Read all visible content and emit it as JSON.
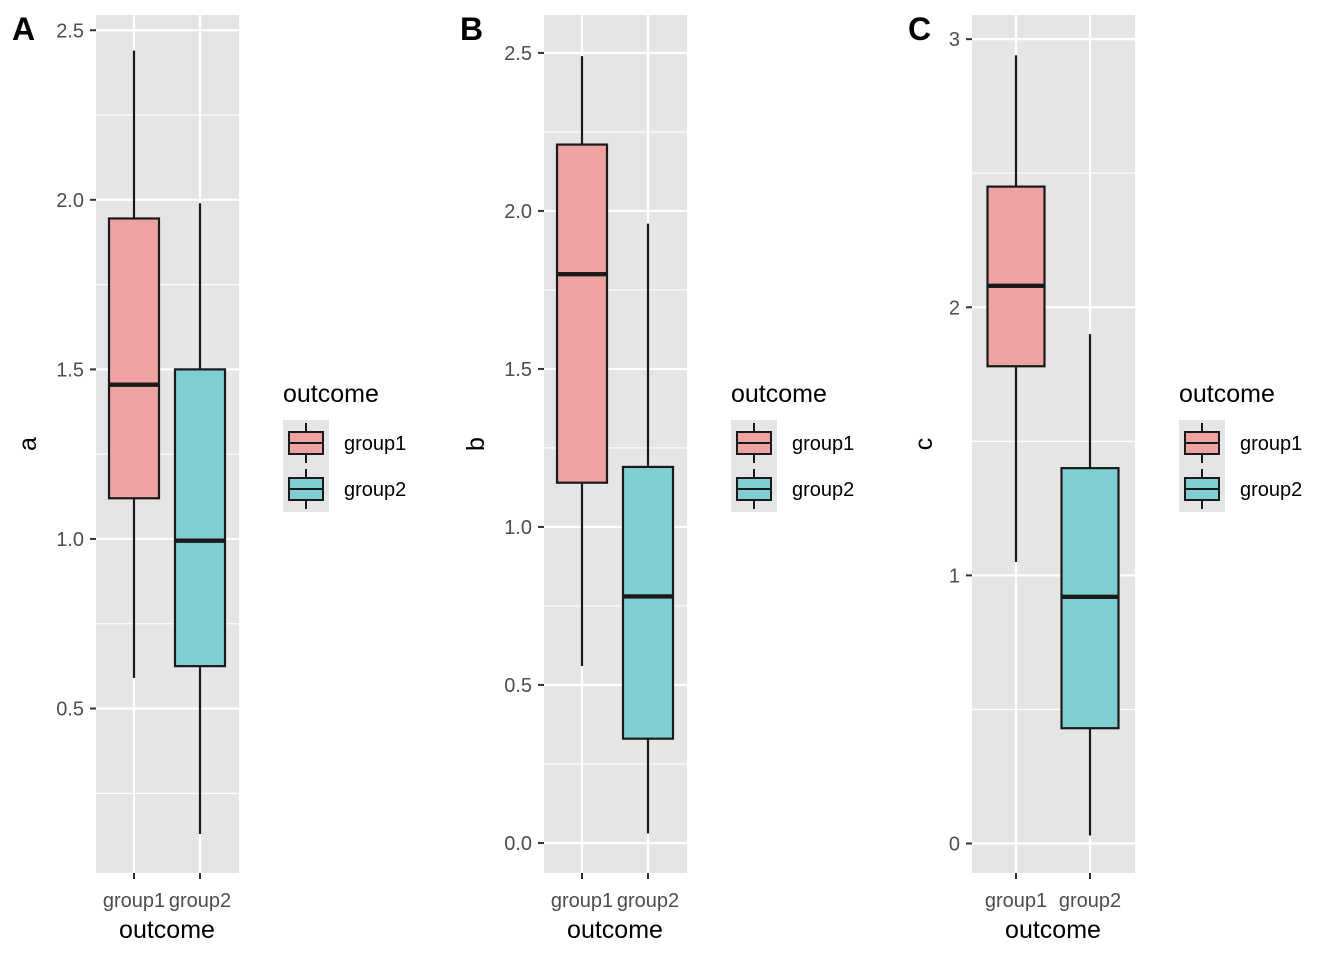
{
  "chart_data": [
    {
      "type": "boxplot",
      "panel_tag": "A",
      "xlabel": "outcome",
      "ylabel": "a",
      "categories": [
        "group1",
        "group2"
      ],
      "ylim": [
        0.015,
        2.545
      ],
      "yticks": [
        0.5,
        1.0,
        1.5,
        2.0,
        2.5
      ],
      "yticks_labels": [
        "0.5",
        "1.0",
        "1.5",
        "2.0",
        "2.5"
      ],
      "boxes": [
        {
          "group": "group1",
          "whisker_low": 0.59,
          "q1": 1.12,
          "median": 1.455,
          "q3": 1.945,
          "whisker_high": 2.44
        },
        {
          "group": "group2",
          "whisker_low": 0.13,
          "q1": 0.625,
          "median": 0.995,
          "q3": 1.5,
          "whisker_high": 1.99
        }
      ],
      "legend": {
        "title": "outcome",
        "entries": [
          "group1",
          "group2"
        ],
        "position": "right"
      }
    },
    {
      "type": "boxplot",
      "panel_tag": "B",
      "xlabel": "outcome",
      "ylabel": "b",
      "categories": [
        "group1",
        "group2"
      ],
      "ylim": [
        -0.095,
        2.62
      ],
      "yticks": [
        0.0,
        0.5,
        1.0,
        1.5,
        2.0,
        2.5
      ],
      "yticks_labels": [
        "0.0",
        "0.5",
        "1.0",
        "1.5",
        "2.0",
        "2.5"
      ],
      "boxes": [
        {
          "group": "group1",
          "whisker_low": 0.56,
          "q1": 1.14,
          "median": 1.8,
          "q3": 2.21,
          "whisker_high": 2.49
        },
        {
          "group": "group2",
          "whisker_low": 0.03,
          "q1": 0.33,
          "median": 0.78,
          "q3": 1.19,
          "whisker_high": 1.96
        }
      ],
      "legend": {
        "title": "outcome",
        "entries": [
          "group1",
          "group2"
        ],
        "position": "right"
      }
    },
    {
      "type": "boxplot",
      "panel_tag": "C",
      "xlabel": "outcome",
      "ylabel": "c",
      "categories": [
        "group1",
        "group2"
      ],
      "ylim": [
        -0.11,
        3.09
      ],
      "yticks": [
        0,
        1,
        2,
        3
      ],
      "yticks_labels": [
        "0",
        "1",
        "2",
        "3"
      ],
      "boxes": [
        {
          "group": "group1",
          "whisker_low": 1.05,
          "q1": 1.78,
          "median": 2.08,
          "q3": 2.45,
          "whisker_high": 2.94
        },
        {
          "group": "group2",
          "whisker_low": 0.03,
          "q1": 0.43,
          "median": 0.92,
          "q3": 1.4,
          "whisker_high": 1.9
        }
      ],
      "legend": {
        "title": "outcome",
        "entries": [
          "group1",
          "group2"
        ],
        "position": "right"
      }
    }
  ],
  "colors": {
    "panel_background": "#e5e5e5",
    "grid": "#ffffff",
    "group1_fill": "#eea2a1",
    "group2_fill": "#7fcfd2",
    "outline": "#1a1a1a",
    "tick": "#333333"
  }
}
